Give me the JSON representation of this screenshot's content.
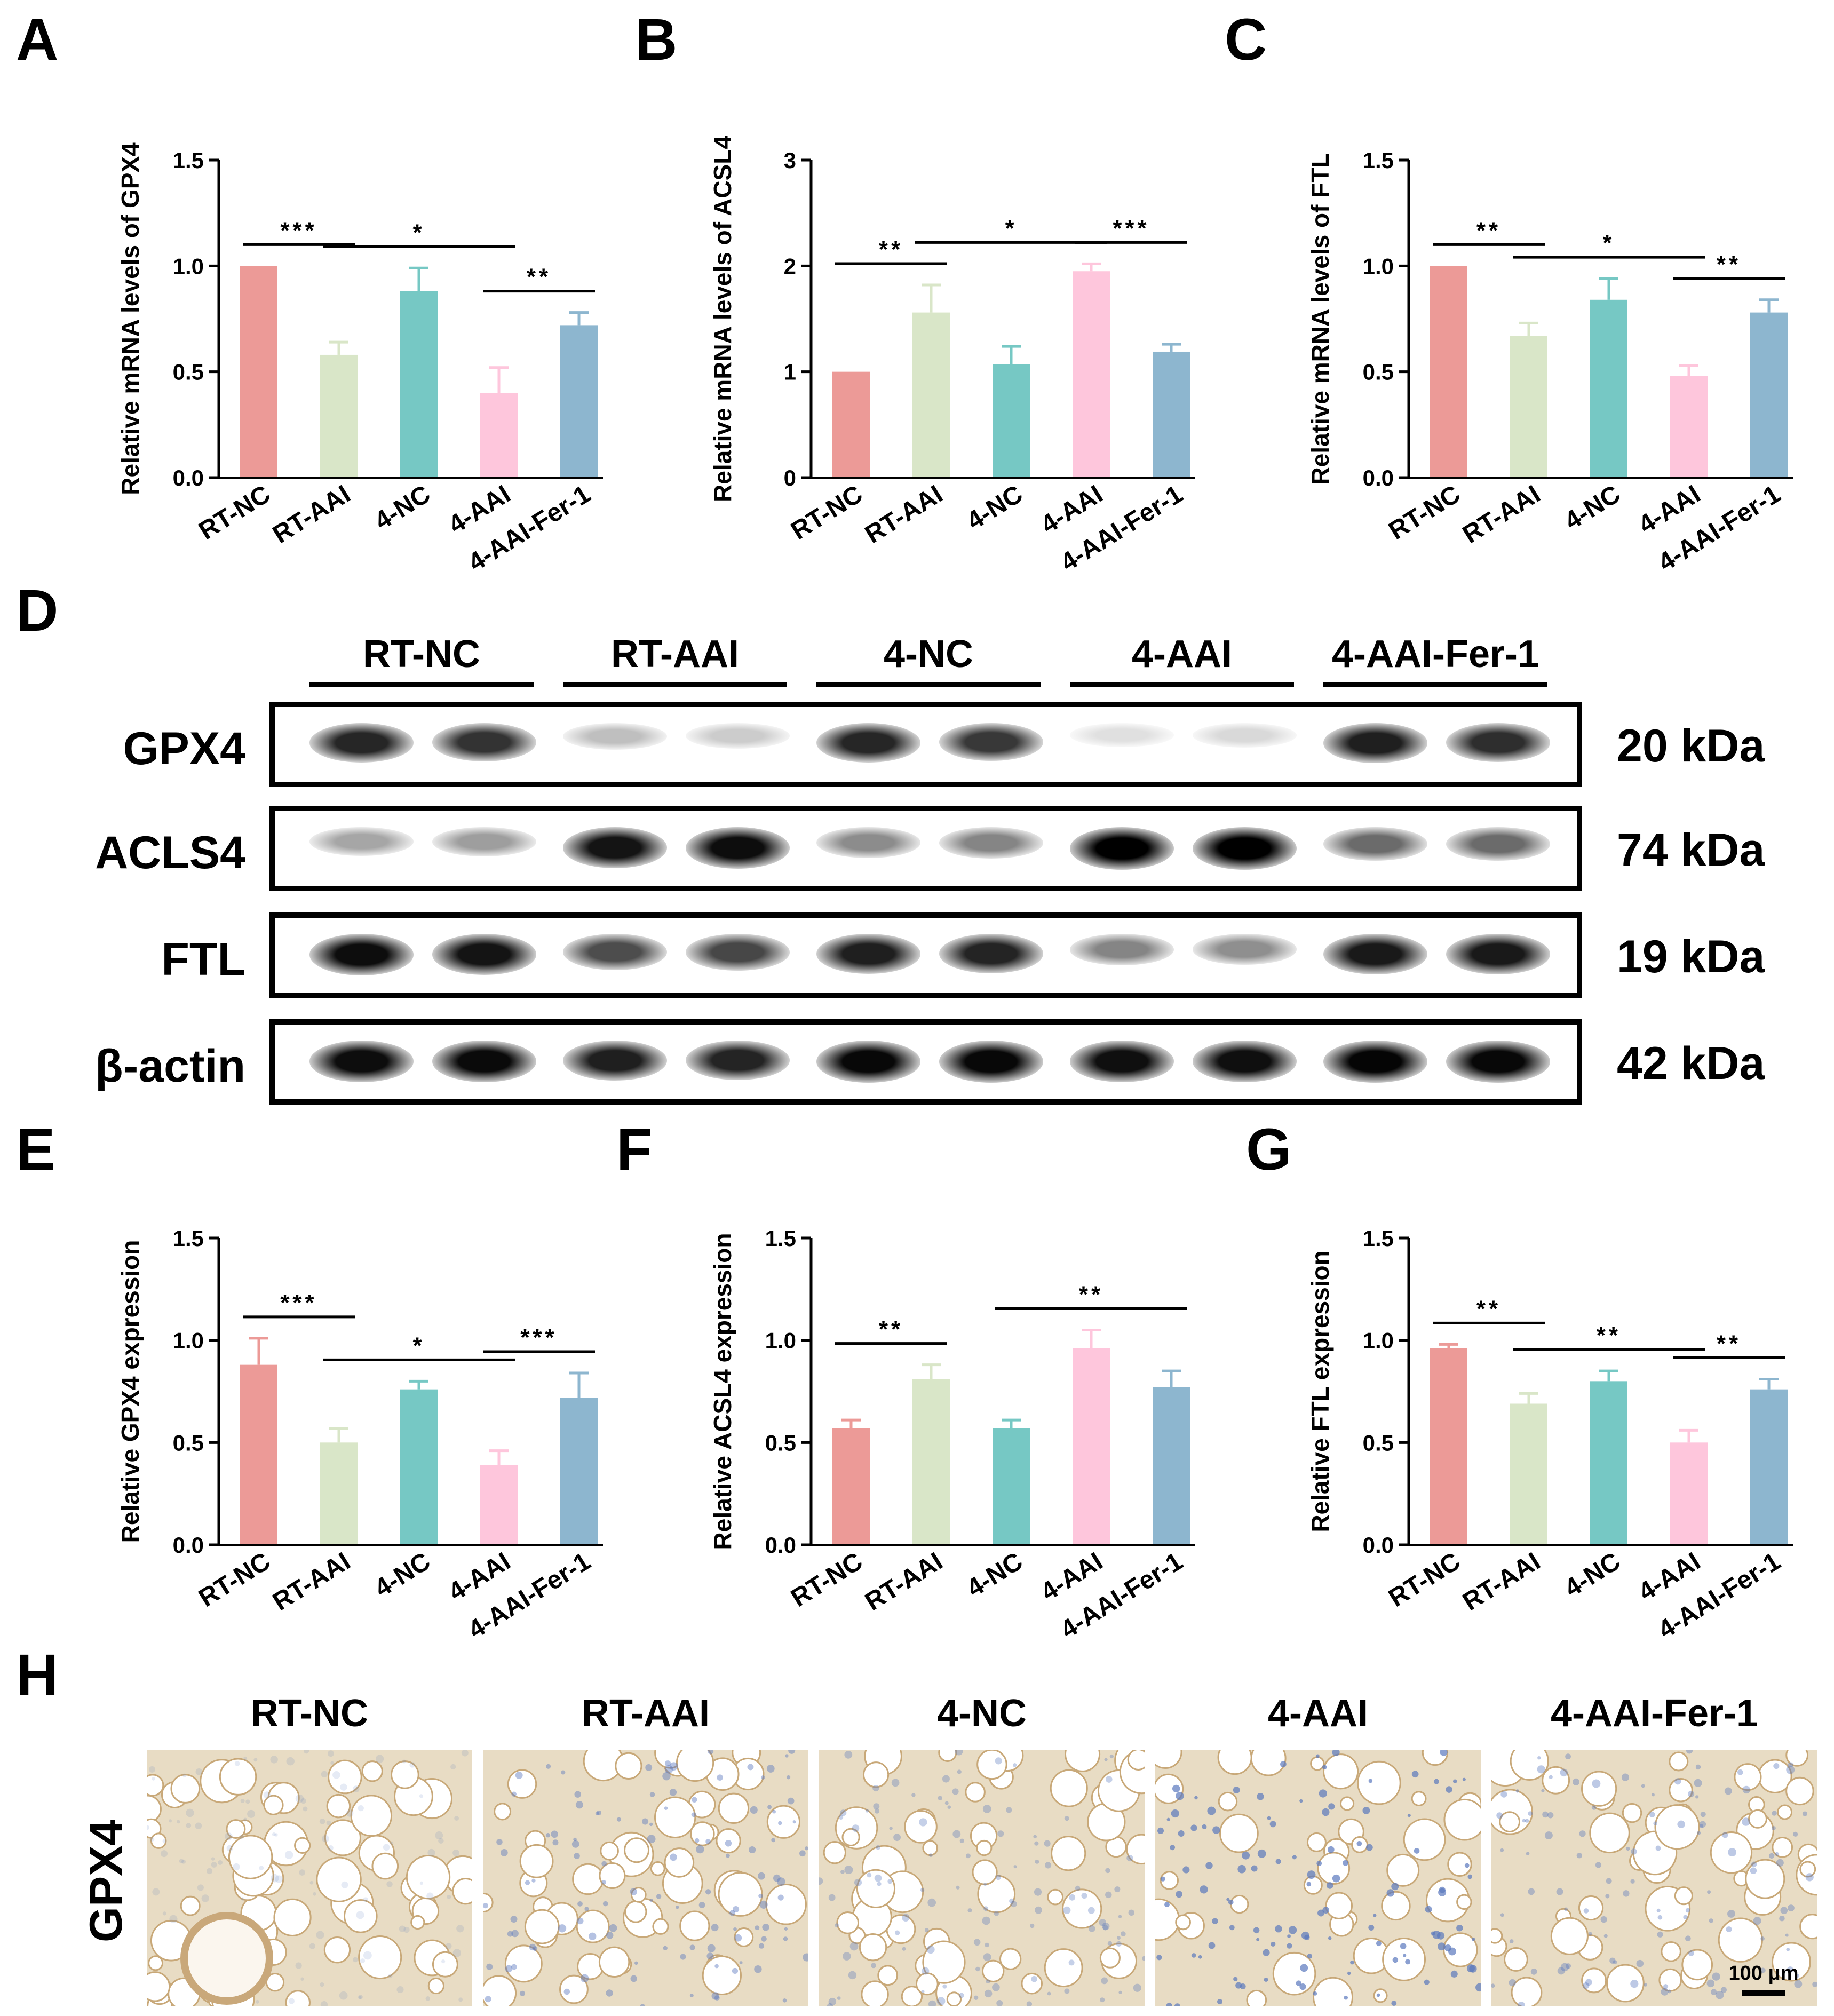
{
  "charts_top": [
    {
      "id": "A",
      "title": "",
      "ylabel": "Relative mRNA levels of GPX4",
      "ylim": [
        0,
        1.5
      ],
      "yticks": [
        "0.0",
        "0.5",
        "1.0",
        "1.5"
      ],
      "categories": [
        "RT-NC",
        "RT-AAI",
        "4-NC",
        "4-AAI",
        "4-AAI-Fer-1"
      ],
      "values": [
        1.0,
        0.58,
        0.88,
        0.4,
        0.72
      ],
      "errors": [
        0,
        0.06,
        0.11,
        0.12,
        0.06
      ],
      "sig": [
        {
          "from": 0,
          "to": 1,
          "label": "***"
        },
        {
          "from": 1,
          "to": 3,
          "label": "*"
        },
        {
          "from": 3,
          "to": 4,
          "label": "**"
        }
      ]
    },
    {
      "id": "B",
      "title": "",
      "ylabel": "Relative mRNA levels of ACSL4",
      "ylim": [
        0,
        3
      ],
      "yticks": [
        "0",
        "1",
        "2",
        "3"
      ],
      "categories": [
        "RT-NC",
        "RT-AAI",
        "4-NC",
        "4-AAI",
        "4-AAI-Fer-1"
      ],
      "values": [
        1.0,
        1.56,
        1.07,
        1.95,
        1.19
      ],
      "errors": [
        0,
        0.26,
        0.17,
        0.07,
        0.07
      ],
      "sig": [
        {
          "from": 0,
          "to": 1,
          "label": "**"
        },
        {
          "from": 1,
          "to": 3,
          "label": "*"
        },
        {
          "from": 3,
          "to": 4,
          "label": "***"
        }
      ]
    },
    {
      "id": "C",
      "title": "",
      "ylabel": "Relative mRNA levels of FTL",
      "ylim": [
        0,
        1.5
      ],
      "yticks": [
        "0.0",
        "0.5",
        "1.0",
        "1.5"
      ],
      "categories": [
        "RT-NC",
        "RT-AAI",
        "4-NC",
        "4-AAI",
        "4-AAI-Fer-1"
      ],
      "values": [
        1.0,
        0.67,
        0.84,
        0.48,
        0.78
      ],
      "errors": [
        0,
        0.06,
        0.1,
        0.05,
        0.06
      ],
      "sig": [
        {
          "from": 0,
          "to": 1,
          "label": "**"
        },
        {
          "from": 1,
          "to": 3,
          "label": "*"
        },
        {
          "from": 3,
          "to": 4,
          "label": "**"
        }
      ]
    }
  ],
  "charts_bottom": [
    {
      "id": "E",
      "ylabel": "Relative GPX4 expression",
      "ylim": [
        0,
        1.5
      ],
      "yticks": [
        "0.0",
        "0.5",
        "1.0",
        "1.5"
      ],
      "categories": [
        "RT-NC",
        "RT-AAI",
        "4-NC",
        "4-AAI",
        "4-AAI-Fer-1"
      ],
      "values": [
        0.88,
        0.5,
        0.76,
        0.39,
        0.72
      ],
      "errors": [
        0.13,
        0.07,
        0.04,
        0.07,
        0.12
      ],
      "sig": [
        {
          "from": 0,
          "to": 1,
          "label": "***"
        },
        {
          "from": 1,
          "to": 3,
          "label": "*"
        },
        {
          "from": 3,
          "to": 4,
          "label": "***"
        }
      ]
    },
    {
      "id": "F",
      "ylabel": "Relative ACSL4 expression",
      "ylim": [
        0,
        1.5
      ],
      "yticks": [
        "0.0",
        "0.5",
        "1.0",
        "1.5"
      ],
      "categories": [
        "RT-NC",
        "RT-AAI",
        "4-NC",
        "4-AAI",
        "4-AAI-Fer-1"
      ],
      "values": [
        0.57,
        0.81,
        0.57,
        0.96,
        0.77
      ],
      "errors": [
        0.04,
        0.07,
        0.04,
        0.09,
        0.08
      ],
      "sig": [
        {
          "from": 0,
          "to": 1,
          "label": "**"
        },
        {
          "from": 2,
          "to": 4,
          "label": "**"
        }
      ]
    },
    {
      "id": "G",
      "ylabel": "Relative FTL expression",
      "ylim": [
        0,
        1.5
      ],
      "yticks": [
        "0.0",
        "0.5",
        "1.0",
        "1.5"
      ],
      "categories": [
        "RT-NC",
        "RT-AAI",
        "4-NC",
        "4-AAI",
        "4-AAI-Fer-1"
      ],
      "values": [
        0.96,
        0.69,
        0.8,
        0.5,
        0.76
      ],
      "errors": [
        0.02,
        0.05,
        0.05,
        0.06,
        0.05
      ],
      "sig": [
        {
          "from": 0,
          "to": 1,
          "label": "**"
        },
        {
          "from": 1,
          "to": 3,
          "label": "**"
        },
        {
          "from": 3,
          "to": 4,
          "label": "**"
        }
      ]
    }
  ],
  "bar_colors": [
    "#EC9A97",
    "#D9E6C8",
    "#76C8C4",
    "#FEC6DC",
    "#8DB6CF"
  ],
  "western_blot": {
    "panel": "D",
    "groups": [
      "RT-NC",
      "RT-AAI",
      "4-NC",
      "4-AAI",
      "4-AAI-Fer-1"
    ],
    "rows": [
      {
        "label": "GPX4",
        "kda": "20 kDa",
        "intensity": [
          0.85,
          0.8,
          0.25,
          0.2,
          0.85,
          0.78,
          0.12,
          0.15,
          0.88,
          0.82
        ]
      },
      {
        "label": "ACLS4",
        "kda": "74 kDa",
        "intensity": [
          0.35,
          0.38,
          0.92,
          0.95,
          0.45,
          0.48,
          1.0,
          1.0,
          0.58,
          0.58
        ]
      },
      {
        "label": "FTL",
        "kda": "19 kDa",
        "intensity": [
          0.95,
          0.92,
          0.7,
          0.72,
          0.88,
          0.86,
          0.48,
          0.44,
          0.9,
          0.9
        ]
      },
      {
        "label": "β-actin",
        "kda": "42 kDa",
        "intensity": [
          0.95,
          0.96,
          0.88,
          0.86,
          0.97,
          0.97,
          0.94,
          0.94,
          0.98,
          0.97
        ]
      }
    ]
  },
  "ihc": {
    "panel": "H",
    "row_label": "GPX4",
    "columns": [
      "RT-NC",
      "RT-AAI",
      "4-NC",
      "4-AAI",
      "4-AAI-Fer-1"
    ],
    "scale_bar": "100 μm"
  },
  "panel_letters": {
    "A": "A",
    "B": "B",
    "C": "C",
    "D": "D",
    "E": "E",
    "F": "F",
    "G": "G",
    "H": "H"
  }
}
